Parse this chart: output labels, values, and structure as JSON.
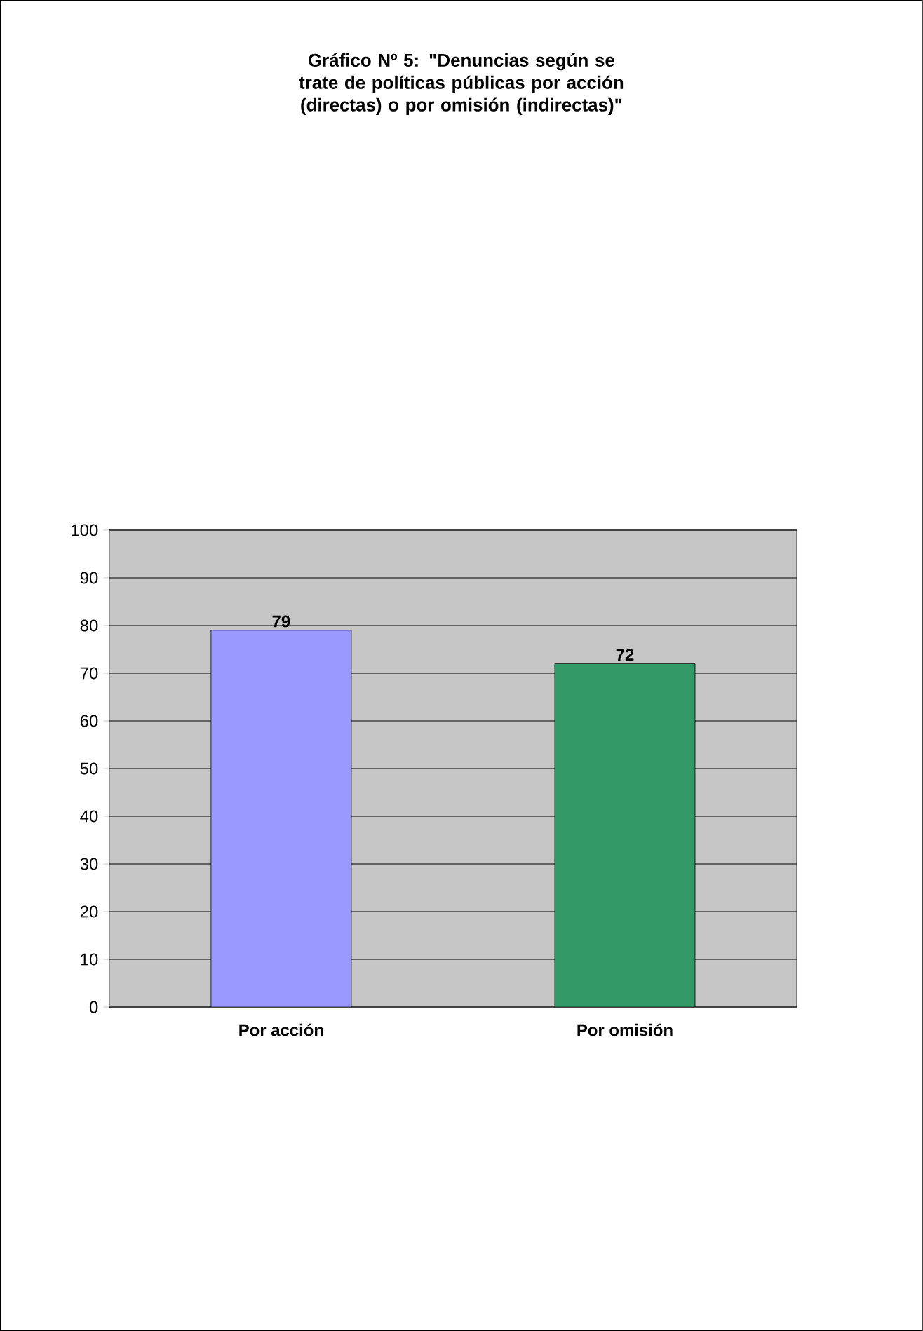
{
  "chart_data": {
    "type": "bar",
    "title": "Gráfico Nº 5: \"Denuncias según se trate de políticas públicas por acción (directas) o por omisión (indirectas)\"",
    "categories": [
      "Por acción",
      "Por omisión"
    ],
    "values": [
      79,
      72
    ],
    "colors": [
      "#9999ff",
      "#339966"
    ],
    "ylim": [
      0,
      100
    ],
    "yticks": [
      0,
      10,
      20,
      30,
      40,
      50,
      60,
      70,
      80,
      90,
      100
    ],
    "grid": "y",
    "data_labels": true
  }
}
